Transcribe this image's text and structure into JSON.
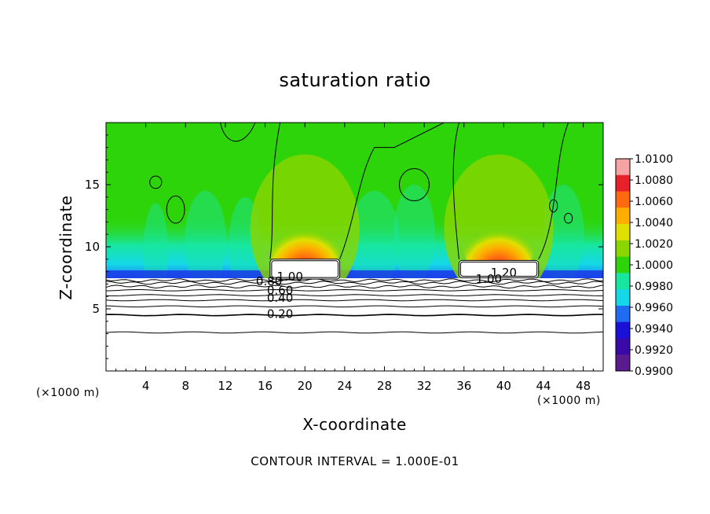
{
  "chart_data": {
    "type": "heatmap",
    "title": "saturation ratio",
    "xlabel": "X-coordinate",
    "ylabel": "Z-coordinate",
    "x_unit_label": "(×1000 m)",
    "footnote": "CONTOUR INTERVAL = 1.000E-01",
    "xlim": [
      0,
      50
    ],
    "ylim": [
      0,
      20
    ],
    "x_ticks": [
      4,
      8,
      12,
      16,
      20,
      24,
      28,
      32,
      36,
      40,
      44,
      48
    ],
    "y_ticks": [
      5,
      10,
      15
    ],
    "colorbar": {
      "min": 0.99,
      "max": 1.01,
      "labels": [
        "1.0100",
        "1.0080",
        "1.0060",
        "1.0040",
        "1.0020",
        "1.0000",
        "0.9980",
        "0.9960",
        "0.9940",
        "0.9920",
        "0.9900"
      ],
      "colors": [
        "#f5a3a3",
        "#e8202a",
        "#ff6a10",
        "#ffae00",
        "#e0e000",
        "#8ad600",
        "#2ed40a",
        "#18e6a0",
        "#14d8e8",
        "#1f6cf0",
        "#1a10d8",
        "#3a0aa8",
        "#5a1a90"
      ]
    },
    "contour_labels": [
      {
        "text": "0.20",
        "x": 17.5,
        "y": 4.6
      },
      {
        "text": "0.40",
        "x": 17.5,
        "y": 5.9
      },
      {
        "text": "0.60",
        "x": 17.5,
        "y": 6.5
      },
      {
        "text": "0.80",
        "x": 16.4,
        "y": 7.2
      },
      {
        "text": "1.00",
        "x": 18.5,
        "y": 7.6
      },
      {
        "text": "1.00",
        "x": 38.5,
        "y": 7.4
      },
      {
        "text": "1.20",
        "x": 40.0,
        "y": 7.9
      }
    ],
    "saturated_regions": [
      {
        "x_start": 16.5,
        "x_end": 23.5,
        "z_top": 9.0,
        "z_bottom": 7.4
      },
      {
        "x_start": 35.5,
        "x_end": 43.5,
        "z_top": 8.9,
        "z_bottom": 7.5
      }
    ],
    "background_ratio": 1.0,
    "subsaturated_band": {
      "z_bottom": 7.3,
      "z_top": 8.5,
      "min_ratio": 0.992
    },
    "supersaturated_cores": [
      {
        "x_center": 20.0,
        "z_center": 10.3,
        "max_ratio": 1.0065
      },
      {
        "x_center": 39.5,
        "z_center": 10.3,
        "max_ratio": 1.0065
      }
    ]
  }
}
